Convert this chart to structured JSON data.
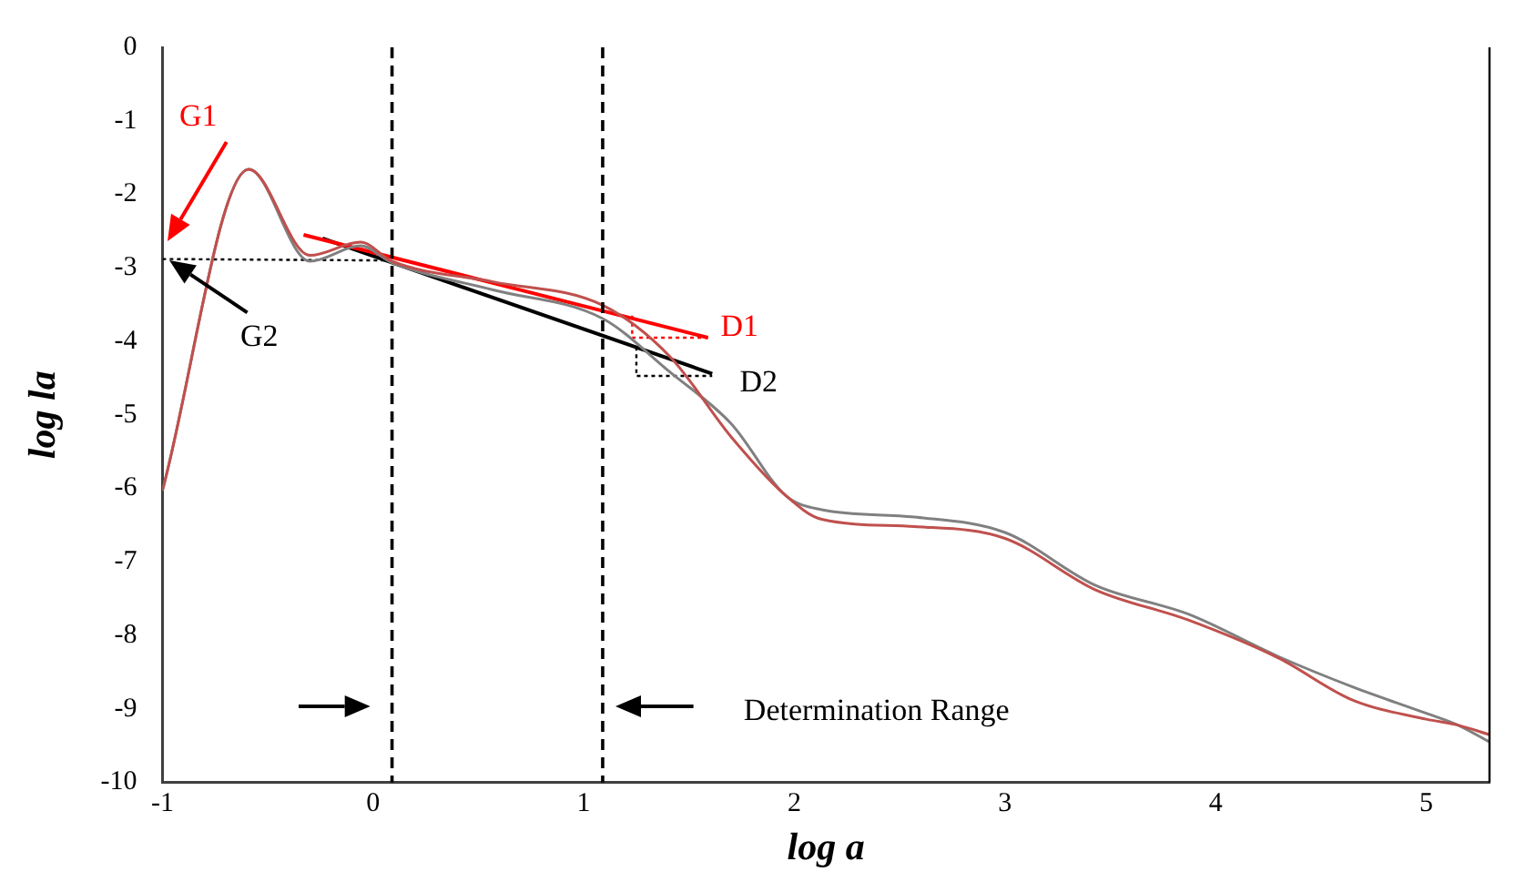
{
  "chart_data": {
    "type": "line",
    "xlabel": "log a",
    "ylabel": "log la",
    "xlim": [
      -1,
      5.3
    ],
    "xticks": [
      -1,
      0,
      1,
      2,
      3,
      4,
      5
    ],
    "ylim": [
      -10,
      0
    ],
    "yticks": [
      0,
      -1,
      -2,
      -3,
      -4,
      -5,
      -6,
      -7,
      -8,
      -9,
      -10
    ],
    "grid": false,
    "legend": false,
    "marker": "none",
    "series": [
      {
        "color": "#c0504d",
        "line_style": "solid",
        "x": [
          -1,
          -0.59,
          -0.3,
          -0.06,
          0.09,
          0.57,
          1.09,
          1.41,
          1.7,
          1.96,
          2.13,
          2.57,
          3.0,
          3.43,
          3.87,
          4.3,
          4.65,
          5.0,
          5.15,
          5.3
        ],
        "values": [
          -6.03,
          -1.66,
          -2.83,
          -2.65,
          -2.91,
          -3.19,
          -3.51,
          -4.21,
          -5.3,
          -6.1,
          -6.42,
          -6.52,
          -6.68,
          -7.38,
          -7.79,
          -8.31,
          -8.88,
          -9.14,
          -9.22,
          -9.35
        ]
      },
      {
        "color": "#808080",
        "line_style": "solid",
        "x": [
          -1,
          -0.59,
          -0.3,
          -0.06,
          0.09,
          0.57,
          1.09,
          1.41,
          1.7,
          1.96,
          2.13,
          2.57,
          3.0,
          3.43,
          3.87,
          4.3,
          4.65,
          5.0,
          5.15,
          5.3
        ],
        "values": [
          -6.03,
          -1.66,
          -2.91,
          -2.7,
          -2.93,
          -3.3,
          -3.69,
          -4.42,
          -5.12,
          -6.1,
          -6.29,
          -6.39,
          -6.6,
          -7.32,
          -7.71,
          -8.29,
          -8.7,
          -9.06,
          -9.22,
          -9.45
        ]
      },
      {
        "color": "#ff0000",
        "line_style": "solid",
        "x": [
          -0.33,
          1.59
        ],
        "values": [
          -2.55,
          -3.95
        ]
      },
      {
        "color": "#000000",
        "line_style": "solid",
        "x": [
          -0.24,
          1.61
        ],
        "values": [
          -2.6,
          -4.44
        ]
      },
      {
        "color": "#000000",
        "line_style": "dotted",
        "x": [
          -1,
          0.09
        ],
        "values": [
          -2.88,
          -2.9
        ]
      },
      {
        "color": "#ff0000",
        "line_style": "dotted",
        "x": [
          1.23,
          1.23,
          1.59
        ],
        "values": [
          -3.65,
          -3.95,
          -3.95
        ]
      },
      {
        "color": "#000000",
        "line_style": "dotted",
        "x": [
          1.25,
          1.25,
          1.61
        ],
        "values": [
          -4.08,
          -4.47,
          -4.47
        ]
      }
    ],
    "ref_lines": [
      {
        "axis": "x",
        "value": 0.09,
        "color": "#000000",
        "line_style": "dashed"
      },
      {
        "axis": "x",
        "value": 1.09,
        "color": "#000000",
        "line_style": "dashed"
      }
    ],
    "annotations": [
      "G1",
      "G2",
      "D1",
      "D2",
      "Determination Range"
    ]
  }
}
